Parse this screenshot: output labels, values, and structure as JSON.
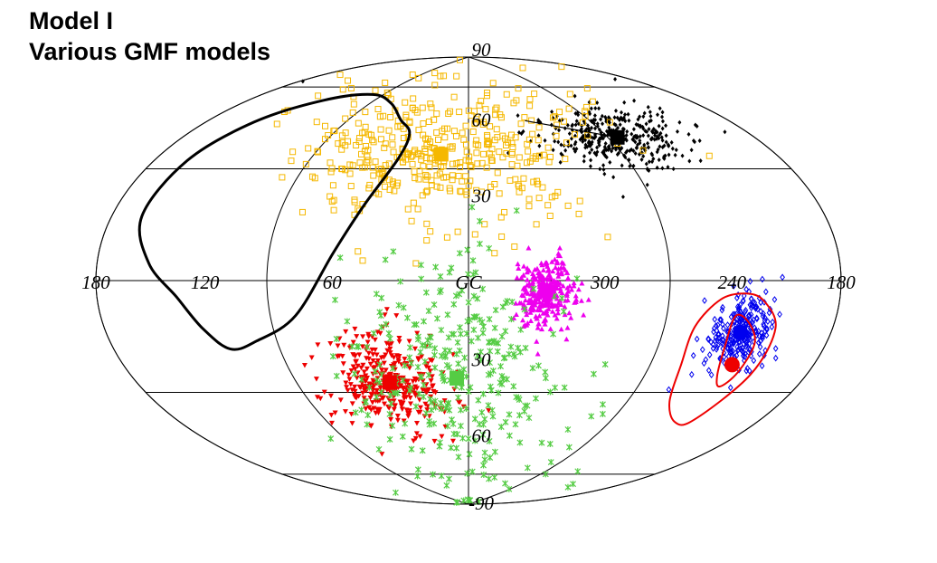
{
  "title": "Model I",
  "subtitle": "Various GMF models",
  "chart_data": {
    "type": "scatter",
    "projection": "Hammer-Aitoff (galactic coordinates, GC at center, longitude increasing to the left)",
    "title": "Model I",
    "subtitle": "Various GMF models",
    "longitude_labels": [
      "180",
      "120",
      "60",
      "GC",
      "300",
      "240",
      "180"
    ],
    "latitude_labels": [
      "90",
      "60",
      "30",
      "30",
      "60",
      "90"
    ],
    "longitude_label_values": [
      180,
      120,
      60,
      0,
      -60,
      -120,
      -180
    ],
    "latitude_label_values": [
      90,
      60,
      30,
      -30,
      -60,
      -90
    ],
    "grid": {
      "meridians_deg": [
        180,
        90,
        0,
        -90,
        -180
      ],
      "parallels_deg": [
        60,
        30,
        0,
        -30,
        -60
      ]
    },
    "series": [
      {
        "name": "black",
        "color": "#000000",
        "marker": "diamond",
        "center": {
          "l": -96,
          "b": 50
        },
        "spread": {
          "dl": 15,
          "db": 6
        },
        "count": 380
      },
      {
        "name": "orange",
        "color": "#f5b800",
        "marker": "open-square",
        "center": {
          "l": 16,
          "b": 47
        },
        "spread": {
          "dl": 30,
          "db": 14
        },
        "count": 420
      },
      {
        "name": "magenta",
        "color": "#ee00ee",
        "marker": "triangle-up",
        "center": {
          "l": -34,
          "b": -4
        },
        "spread": {
          "dl": 6,
          "db": 6
        },
        "count": 300
      },
      {
        "name": "red",
        "color": "#ee0000",
        "marker": "triangle-down",
        "center": {
          "l": 41,
          "b": -37
        },
        "spread": {
          "dl": 12,
          "db": 9
        },
        "count": 350
      },
      {
        "name": "green",
        "color": "#55cc44",
        "marker": "cross",
        "center": {
          "l": 6,
          "b": -36
        },
        "spread": {
          "dl": 25,
          "db": 22
        },
        "count": 330
      },
      {
        "name": "blue",
        "color": "#0000ee",
        "marker": "open-diamond",
        "center": {
          "l": -129,
          "b": -16
        },
        "spread": {
          "dl": 8,
          "db": 6
        },
        "count": 260
      }
    ],
    "markers": [
      {
        "series": "black",
        "shape": "square",
        "l": -96,
        "b": 50,
        "color": "#000000"
      },
      {
        "series": "orange",
        "shape": "square",
        "l": 16,
        "b": 47,
        "color": "#f5b800"
      },
      {
        "series": "magenta",
        "shape": "circle",
        "l": -34,
        "b": -4,
        "color": "#ee00ee"
      },
      {
        "series": "red",
        "shape": "square",
        "l": 41,
        "b": -37,
        "color": "#ee0000"
      },
      {
        "series": "green",
        "shape": "square",
        "l": 6,
        "b": -36,
        "color": "#55cc44"
      },
      {
        "series": "blue",
        "shape": "circle",
        "l": -129,
        "b": -16,
        "color": "#0000ee"
      },
      {
        "series": "red-source",
        "shape": "circle",
        "l": -133,
        "b": -26,
        "color": "#ee0000"
      }
    ],
    "contours": [
      {
        "name": "black-exposure-loop",
        "color": "#000000",
        "width": 3,
        "points": [
          [
            52,
            60
          ],
          [
            40,
            55
          ],
          [
            40,
            45
          ],
          [
            50,
            27
          ],
          [
            60,
            10
          ],
          [
            78,
            -12
          ],
          [
            100,
            -20
          ],
          [
            115,
            -22
          ],
          [
            125,
            -15
          ],
          [
            135,
            -5
          ],
          [
            150,
            5
          ],
          [
            162,
            18
          ],
          [
            160,
            35
          ],
          [
            150,
            50
          ],
          [
            130,
            62
          ],
          [
            100,
            68
          ],
          [
            72,
            66
          ],
          [
            52,
            60
          ]
        ]
      },
      {
        "name": "red-outer-contour",
        "color": "#ee0000",
        "width": 2,
        "points": [
          [
            -105,
            -15
          ],
          [
            -115,
            -6
          ],
          [
            -127,
            -4
          ],
          [
            -137,
            -6
          ],
          [
            -147,
            -14
          ],
          [
            -147,
            -28
          ],
          [
            -140,
            -44
          ],
          [
            -130,
            -46
          ],
          [
            -114,
            -40
          ],
          [
            -106,
            -28
          ],
          [
            -105,
            -15
          ]
        ]
      },
      {
        "name": "red-inner-contour",
        "color": "#ee0000",
        "width": 2,
        "points": [
          [
            -124,
            -11
          ],
          [
            -132,
            -13
          ],
          [
            -139,
            -19
          ],
          [
            -139,
            -28
          ],
          [
            -135,
            -33
          ],
          [
            -129,
            -30
          ],
          [
            -124,
            -21
          ],
          [
            -124,
            -11
          ]
        ]
      }
    ],
    "extra_lines": [
      {
        "name": "black-diagonal",
        "color": "#000000",
        "from": {
          "l": -43,
          "b": 60
        },
        "to": {
          "l": -96,
          "b": 50
        }
      }
    ]
  }
}
